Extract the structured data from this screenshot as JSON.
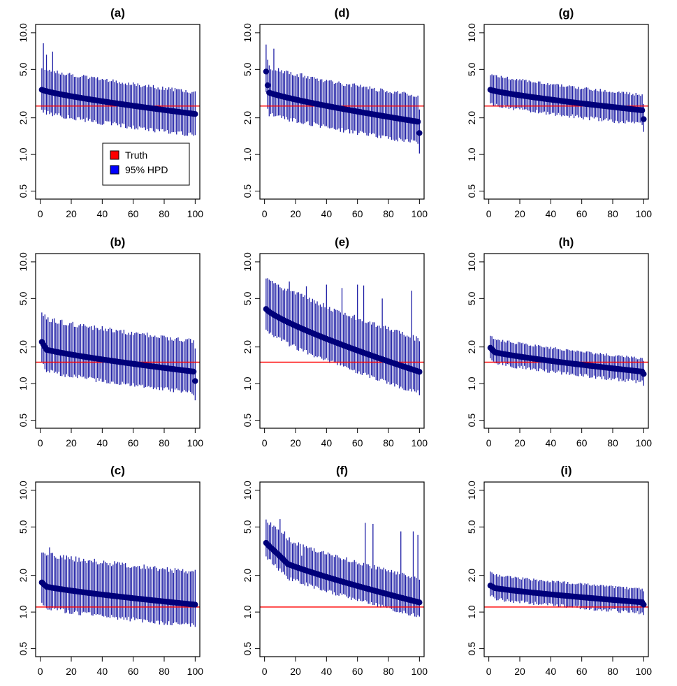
{
  "chart_data": {
    "type": "scatter",
    "layout": "3x3 grid, panels ordered column-wise",
    "y_scale": "log",
    "y_ticks": [
      "0.5",
      "1.0",
      "2.0",
      "5.0",
      "10.0"
    ],
    "x_ticks": [
      "0",
      "20",
      "40",
      "60",
      "80",
      "100"
    ],
    "xlim": [
      0,
      100
    ],
    "ylim": [
      0.5,
      10
    ],
    "n_points": 100,
    "colors": {
      "truth": "#ff0000",
      "interval": "#1f1fa6",
      "point": "#00007a"
    },
    "legend": {
      "panel": "(a)",
      "position": "bottom-right",
      "entries": [
        {
          "label": "Truth",
          "color": "#ff0000"
        },
        {
          "label": "95% HPD",
          "color": "#0000ff"
        }
      ]
    },
    "panels": [
      {
        "title": "(a)",
        "truth": 2.5,
        "point_start": 3.4,
        "point_end": 2.15,
        "jump": 0,
        "jump_at": 0,
        "lower_ratio": 0.7,
        "upper_ratio": 1.45,
        "outliers": [
          [
            2,
            8.2
          ],
          [
            4,
            6.6
          ],
          [
            8,
            7.0
          ]
        ],
        "final_point": 2.15
      },
      {
        "title": "(b)",
        "truth": 1.5,
        "point_start": 1.95,
        "point_end": 1.25,
        "jump": 0.25,
        "jump_at": 3,
        "lower_ratio": 0.7,
        "upper_ratio": 1.7,
        "outliers": [
          [
            2,
            3.6
          ],
          [
            7,
            3.2
          ],
          [
            11,
            3.1
          ]
        ],
        "final_point": 1.05
      },
      {
        "title": "(c)",
        "truth": 1.1,
        "point_start": 1.65,
        "point_end": 1.15,
        "jump": 0.1,
        "jump_at": 3,
        "lower_ratio": 0.7,
        "upper_ratio": 1.75,
        "outliers": [
          [
            6,
            3.4
          ]
        ],
        "final_point": 1.15
      },
      {
        "title": "(d)",
        "truth": 2.5,
        "point_start": 3.3,
        "point_end": 1.85,
        "jump": 0,
        "jump_at": 0,
        "lower_ratio": 0.7,
        "upper_ratio": 1.55,
        "outliers": [
          [
            2,
            6.0
          ],
          [
            6,
            7.4
          ]
        ],
        "first_points": [
          4.8,
          3.7
        ],
        "final_point": 1.5
      },
      {
        "title": "(e)",
        "truth": 1.5,
        "point_start": 4.1,
        "point_end": 1.25,
        "jump": 0,
        "jump_at": 0,
        "lower_ratio": 0.7,
        "upper_ratio": 1.75,
        "outliers": [
          [
            1,
            7.3
          ],
          [
            4,
            7.0
          ],
          [
            9,
            6.5
          ],
          [
            16,
            6.9
          ],
          [
            27,
            6.3
          ],
          [
            40,
            6.5
          ],
          [
            50,
            6.1
          ],
          [
            60,
            6.5
          ],
          [
            64,
            6.4
          ],
          [
            76,
            5.0
          ],
          [
            95,
            5.8
          ]
        ],
        "final_point": 1.25
      },
      {
        "title": "(f)",
        "truth": 1.1,
        "point_start": 3.0,
        "point_end": 1.2,
        "jump": 0.7,
        "jump_at": 14,
        "lower_ratio": 0.8,
        "upper_ratio": 1.5,
        "outliers": [
          [
            3,
            5.2
          ],
          [
            10,
            5.8
          ],
          [
            13,
            4.6
          ],
          [
            16,
            4.1
          ],
          [
            24,
            2.9
          ],
          [
            65,
            5.4
          ],
          [
            70,
            5.3
          ],
          [
            88,
            4.6
          ],
          [
            96,
            4.6
          ],
          [
            99,
            4.3
          ]
        ],
        "final_point": 1.2
      },
      {
        "title": "(g)",
        "truth": 2.5,
        "point_start": 3.4,
        "point_end": 2.3,
        "jump": 0,
        "jump_at": 0,
        "lower_ratio": 0.8,
        "upper_ratio": 1.3,
        "outliers": [],
        "final_point": 1.95
      },
      {
        "title": "(h)",
        "truth": 1.5,
        "point_start": 1.85,
        "point_end": 1.25,
        "jump": 0.12,
        "jump_at": 3,
        "lower_ratio": 0.85,
        "upper_ratio": 1.25,
        "outliers": [
          [
            2,
            2.45
          ]
        ],
        "final_point": 1.2
      },
      {
        "title": "(i)",
        "truth": 1.1,
        "point_start": 1.6,
        "point_end": 1.2,
        "jump": 0.05,
        "jump_at": 3,
        "lower_ratio": 0.85,
        "upper_ratio": 1.25,
        "outliers": [],
        "final_point": 1.15
      }
    ]
  }
}
